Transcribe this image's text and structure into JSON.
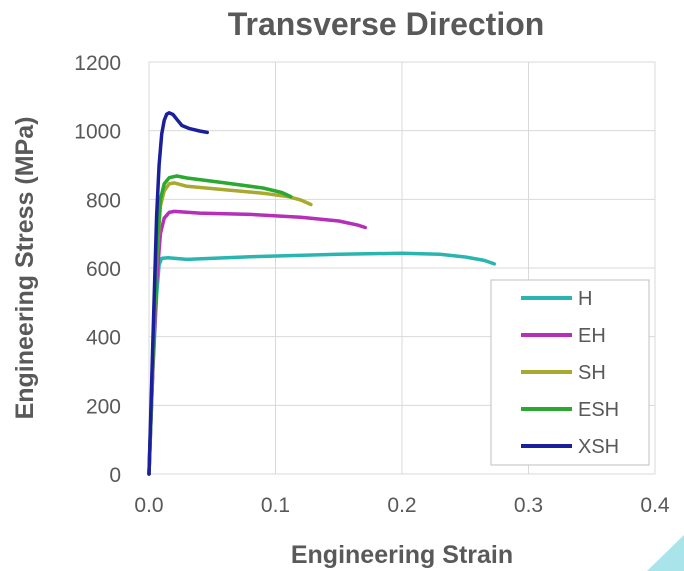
{
  "chart_data": {
    "type": "line",
    "title": "Transverse Direction",
    "xlabel": "Engineering Strain",
    "ylabel": "Engineering Stress (MPa)",
    "xlim": [
      0,
      0.4
    ],
    "ylim": [
      0,
      1200
    ],
    "xticks": [
      "0.0",
      "0.1",
      "0.2",
      "0.3",
      "0.4"
    ],
    "xtick_values": [
      0,
      0.1,
      0.2,
      0.3,
      0.4
    ],
    "yticks": [
      "0",
      "200",
      "400",
      "600",
      "800",
      "1000",
      "1200"
    ],
    "ytick_values": [
      0,
      200,
      400,
      600,
      800,
      1000,
      1200
    ],
    "grid": true,
    "legend_position": "bottom-right",
    "series": [
      {
        "name": "H",
        "color": "#2bb5b0",
        "x": [
          0.0,
          0.003,
          0.006,
          0.008,
          0.01,
          0.015,
          0.03,
          0.08,
          0.15,
          0.2,
          0.23,
          0.25,
          0.265,
          0.273
        ],
        "y": [
          0,
          300,
          520,
          610,
          628,
          630,
          625,
          633,
          640,
          643,
          640,
          632,
          622,
          612
        ]
      },
      {
        "name": "EH",
        "color": "#b52fb8",
        "x": [
          0.0,
          0.003,
          0.006,
          0.009,
          0.012,
          0.016,
          0.02,
          0.04,
          0.08,
          0.12,
          0.15,
          0.165,
          0.171
        ],
        "y": [
          0,
          300,
          560,
          700,
          745,
          762,
          765,
          760,
          756,
          748,
          737,
          725,
          718
        ]
      },
      {
        "name": "SH",
        "color": "#a9a930",
        "x": [
          0.0,
          0.003,
          0.006,
          0.009,
          0.012,
          0.016,
          0.02,
          0.03,
          0.06,
          0.09,
          0.11,
          0.12,
          0.128
        ],
        "y": [
          0,
          330,
          620,
          780,
          825,
          845,
          848,
          838,
          828,
          818,
          808,
          798,
          785
        ]
      },
      {
        "name": "ESH",
        "color": "#2aa830",
        "x": [
          0.0,
          0.003,
          0.006,
          0.009,
          0.012,
          0.016,
          0.022,
          0.03,
          0.06,
          0.09,
          0.105,
          0.112
        ],
        "y": [
          0,
          330,
          630,
          800,
          845,
          863,
          868,
          862,
          848,
          833,
          820,
          808
        ]
      },
      {
        "name": "XSH",
        "color": "#1a1f9c",
        "x": [
          0.0,
          0.003,
          0.006,
          0.008,
          0.01,
          0.012,
          0.014,
          0.016,
          0.019,
          0.022,
          0.026,
          0.032,
          0.04,
          0.046
        ],
        "y": [
          0,
          380,
          750,
          900,
          990,
          1030,
          1048,
          1052,
          1047,
          1033,
          1015,
          1006,
          999,
          995
        ]
      }
    ]
  }
}
